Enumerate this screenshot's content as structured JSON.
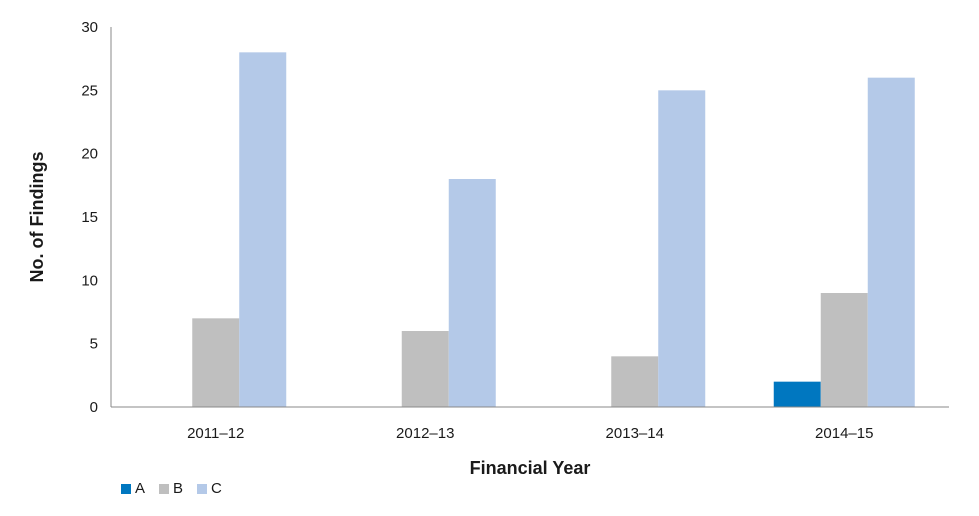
{
  "chart_data": {
    "type": "bar",
    "categories": [
      "2011–12",
      "2012–13",
      "2013–14",
      "2014–15"
    ],
    "series": [
      {
        "name": "A",
        "values": [
          0,
          0,
          0,
          2
        ],
        "color": "#0077c0"
      },
      {
        "name": "B",
        "values": [
          7,
          6,
          4,
          9
        ],
        "color": "#bfbfbf"
      },
      {
        "name": "C",
        "values": [
          28,
          18,
          25,
          26
        ],
        "color": "#b4c9e8"
      }
    ],
    "title": "",
    "xlabel": "Financial Year",
    "ylabel": "No. of Findings",
    "ylim": [
      0,
      30
    ],
    "yticks": [
      0,
      5,
      10,
      15,
      20,
      25,
      30
    ],
    "grid": false,
    "legend_position": "bottom-left"
  }
}
